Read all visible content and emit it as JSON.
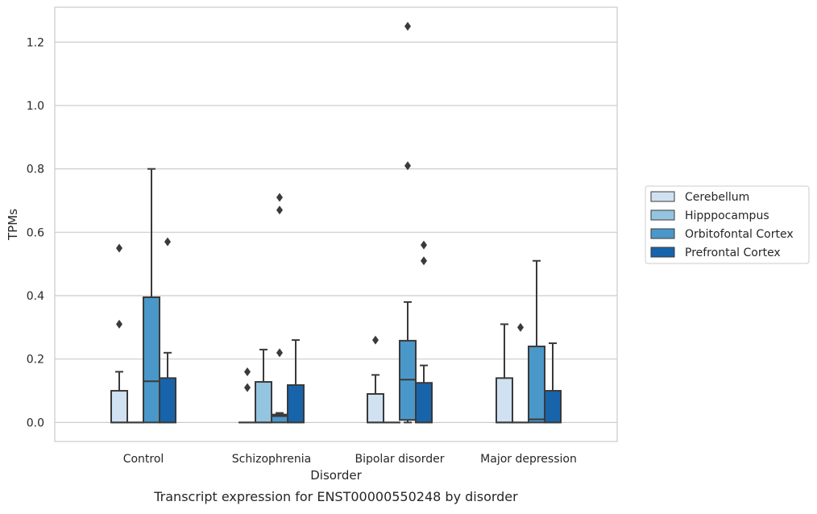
{
  "chart_data": {
    "type": "box",
    "caption": "Transcript expression for ENST00000550248 by disorder",
    "xlabel": "Disorder",
    "ylabel": "TPMs",
    "ylim": [
      -0.06,
      1.31
    ],
    "yticks": [
      0.0,
      0.2,
      0.4,
      0.6,
      0.8,
      1.0,
      1.2
    ],
    "ytick_labels": [
      "0.0",
      "0.2",
      "0.4",
      "0.6",
      "0.8",
      "1.0",
      "1.2"
    ],
    "grid": "horizontal",
    "legend_position": "right",
    "categories": [
      "Control",
      "Schizophrenia",
      "Bipolar disorder",
      "Major depression"
    ],
    "series": [
      {
        "name": "Cerebellum",
        "color": "#d0e1f2",
        "boxes": [
          {
            "whislo": 0,
            "q1": 0,
            "med": 0,
            "q3": 0.1,
            "whishi": 0.16,
            "fliers": [
              0.31,
              0.55
            ]
          },
          {
            "whislo": 0,
            "q1": 0,
            "med": 0,
            "q3": 0,
            "whishi": 0,
            "fliers": [
              0.11,
              0.16
            ]
          },
          {
            "whislo": 0,
            "q1": 0,
            "med": 0,
            "q3": 0.09,
            "whishi": 0.15,
            "fliers": [
              0.26
            ]
          },
          {
            "whislo": 0,
            "q1": 0,
            "med": 0,
            "q3": 0.14,
            "whishi": 0.31,
            "fliers": []
          }
        ]
      },
      {
        "name": "Hipppocampus",
        "color": "#94c4df",
        "boxes": [
          {
            "whislo": 0,
            "q1": 0,
            "med": 0,
            "q3": 0,
            "whishi": 0,
            "fliers": []
          },
          {
            "whislo": 0,
            "q1": 0,
            "med": 0,
            "q3": 0.128,
            "whishi": 0.23,
            "fliers": []
          },
          {
            "whislo": 0,
            "q1": 0,
            "med": 0,
            "q3": 0,
            "whishi": 0,
            "fliers": []
          },
          {
            "whislo": 0,
            "q1": 0,
            "med": 0,
            "q3": 0,
            "whishi": 0,
            "fliers": [
              0.3
            ]
          }
        ]
      },
      {
        "name": "Orbitofontal Cortex",
        "color": "#4a98c9",
        "boxes": [
          {
            "whislo": 0,
            "q1": 0,
            "med": 0.13,
            "q3": 0.395,
            "whishi": 0.8,
            "fliers": []
          },
          {
            "whislo": 0,
            "q1": 0,
            "med": 0.02,
            "q3": 0.025,
            "whishi": 0.03,
            "fliers": [
              0.22,
              0.67,
              0.71
            ]
          },
          {
            "whislo": 0,
            "q1": 0.008,
            "med": 0.135,
            "q3": 0.258,
            "whishi": 0.38,
            "fliers": [
              0.81,
              1.25
            ]
          },
          {
            "whislo": 0,
            "q1": 0,
            "med": 0.01,
            "q3": 0.24,
            "whishi": 0.51,
            "fliers": []
          }
        ]
      },
      {
        "name": "Prefrontal Cortex",
        "color": "#1764ab",
        "boxes": [
          {
            "whislo": 0,
            "q1": 0,
            "med": 0,
            "q3": 0.14,
            "whishi": 0.22,
            "fliers": [
              0.57
            ]
          },
          {
            "whislo": 0,
            "q1": 0,
            "med": 0,
            "q3": 0.118,
            "whishi": 0.26,
            "fliers": []
          },
          {
            "whislo": 0,
            "q1": 0,
            "med": 0,
            "q3": 0.125,
            "whishi": 0.18,
            "fliers": [
              0.51,
              0.56
            ]
          },
          {
            "whislo": 0,
            "q1": 0,
            "med": 0,
            "q3": 0.1,
            "whishi": 0.25,
            "fliers": []
          }
        ]
      }
    ]
  }
}
